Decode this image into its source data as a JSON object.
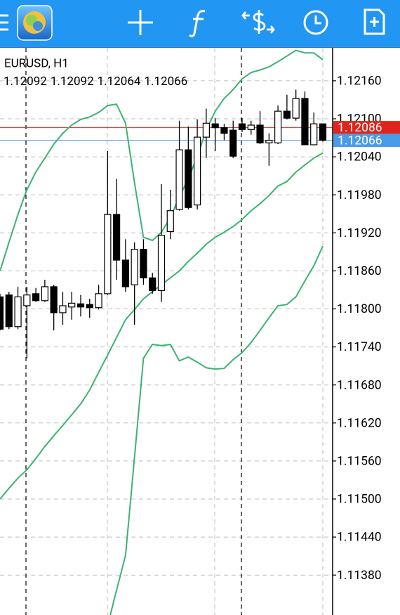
{
  "chart_data": {
    "type": "candlestick",
    "title": "EURUSD, H1",
    "open": [
      1.11819,
      1.11822,
      1.11772,
      1.11805,
      1.11824,
      1.11813,
      1.11835,
      1.11794,
      1.11803,
      1.11808,
      1.11807,
      1.11802,
      1.11824,
      1.11949,
      1.11877,
      1.11838,
      1.11894,
      1.11849,
      1.11829,
      1.11922,
      1.11957,
      1.12051,
      1.11964,
      1.12071,
      1.12092,
      1.12086,
      1.12082,
      1.12092,
      1.12083,
      1.1209,
      1.12062,
      1.12062,
      1.12112,
      1.12101,
      1.12132,
      1.12059,
      1.12092
    ],
    "high": [
      1.11824,
      1.11827,
      1.11835,
      1.11835,
      1.11833,
      1.11846,
      1.11838,
      1.11827,
      1.11827,
      1.11822,
      1.11816,
      1.11838,
      1.12049,
      1.12005,
      1.1191,
      1.11905,
      1.1191,
      1.11857,
      1.11997,
      1.11988,
      1.12097,
      1.12088,
      1.12099,
      1.12116,
      1.12101,
      1.12092,
      1.12097,
      1.12101,
      1.12097,
      1.12112,
      1.12077,
      1.12121,
      1.12138,
      1.12146,
      1.12143,
      1.1211,
      1.12092
    ],
    "low": [
      1.11766,
      1.11768,
      1.11768,
      1.11722,
      1.11811,
      1.11811,
      1.11766,
      1.11775,
      1.11783,
      1.11788,
      1.11786,
      1.11799,
      1.11822,
      1.11846,
      1.11827,
      1.11775,
      1.11838,
      1.11824,
      1.11811,
      1.1191,
      1.11955,
      1.11957,
      1.11957,
      1.12038,
      1.12049,
      1.12066,
      1.12038,
      1.12079,
      1.12075,
      1.1206,
      1.12026,
      1.1206,
      1.12099,
      1.12097,
      1.12059,
      1.12058,
      1.12064
    ],
    "close": [
      1.11768,
      1.11772,
      1.11819,
      1.11822,
      1.11813,
      1.11835,
      1.11794,
      1.11805,
      1.11809,
      1.11803,
      1.11802,
      1.11824,
      1.11949,
      1.11877,
      1.11835,
      1.11894,
      1.11849,
      1.11829,
      1.11916,
      1.11955,
      1.12051,
      1.1196,
      1.12071,
      1.12093,
      1.12086,
      1.12077,
      1.12041,
      1.12083,
      1.1209,
      1.12062,
      1.12066,
      1.12112,
      1.12101,
      1.12132,
      1.12059,
      1.12092,
      1.12066
    ],
    "bull_color": "#ffffff",
    "bear_color": "#000000",
    "lines": [
      {
        "color": "#3cb371",
        "values": [
          1.1186,
          1.11905,
          1.11949,
          1.11988,
          1.12016,
          1.12038,
          1.1206,
          1.12077,
          1.1209,
          1.12099,
          1.12103,
          1.1211,
          1.12121,
          1.12123,
          1.12093,
          1.11999,
          1.11913,
          1.11908,
          1.11921,
          1.11944,
          1.11977,
          1.12005,
          1.12041,
          1.12082,
          1.12112,
          1.12132,
          1.12146,
          1.12163,
          1.12173,
          1.12177,
          1.12182,
          1.1219,
          1.12199,
          1.12208,
          1.12204,
          1.12204,
          1.12193
        ]
      },
      {
        "color": "#3cb371",
        "values": [
          1.115,
          1.11517,
          1.11533,
          1.11546,
          1.11564,
          1.11583,
          1.116,
          1.11616,
          1.11633,
          1.1165,
          1.11672,
          1.117,
          1.11727,
          1.11755,
          1.11783,
          1.11799,
          1.11816,
          1.11827,
          1.11838,
          1.11849,
          1.1186,
          1.11875,
          1.11888,
          1.11902,
          1.11913,
          1.11921,
          1.1193,
          1.11941,
          1.11955,
          1.11966,
          1.11979,
          1.11994,
          1.12001,
          1.12016,
          1.12027,
          1.12038,
          1.12046
        ]
      },
      {
        "color": "#3cb371",
        "values": [
          null,
          null,
          null,
          null,
          null,
          null,
          null,
          null,
          null,
          null,
          null,
          null,
          1.113,
          1.11356,
          1.11411,
          1.11566,
          1.11722,
          1.11744,
          1.11742,
          1.11744,
          1.11718,
          1.11724,
          1.11716,
          1.11707,
          1.11705,
          1.11706,
          1.1172,
          1.11731,
          1.11747,
          1.11766,
          1.11786,
          1.11805,
          1.11807,
          1.11819,
          1.11844,
          1.11868,
          1.11899
        ]
      }
    ],
    "ask": 1.12086,
    "ask_color": "#e0241b",
    "bid": 1.12066,
    "bid_color": "#4a9be8",
    "ylim": [
      1.11317,
      1.12212
    ],
    "yticks": [
      {
        "value": 1.1216,
        "label": "1.12160"
      },
      {
        "value": 1.121,
        "label": "1.12100"
      },
      {
        "value": 1.1204,
        "label": "1.12040"
      },
      {
        "value": 1.1198,
        "label": "1.11980"
      },
      {
        "value": 1.1192,
        "label": "1.11920"
      },
      {
        "value": 1.1186,
        "label": "1.11860"
      },
      {
        "value": 1.118,
        "label": "1.11800"
      },
      {
        "value": 1.1174,
        "label": "1.11740"
      },
      {
        "value": 1.1168,
        "label": "1.11680"
      },
      {
        "value": 1.1162,
        "label": "1.11620"
      },
      {
        "value": 1.1156,
        "label": "1.11560"
      },
      {
        "value": 1.115,
        "label": "1.11500"
      },
      {
        "value": 1.1144,
        "label": "1.11440"
      },
      {
        "value": 1.1138,
        "label": "1.11380"
      }
    ],
    "grid": true
  }
}
